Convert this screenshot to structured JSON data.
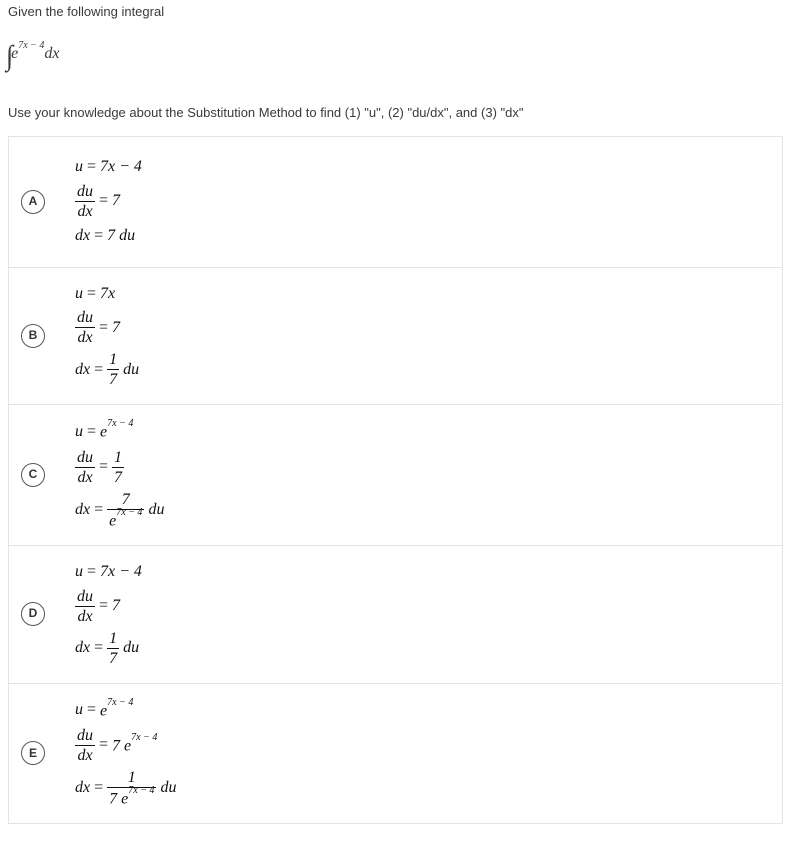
{
  "prompt": "Given the following integral",
  "integral_exponent": "7x − 4",
  "integral_dx": "dx",
  "instruction": "Use your knowledge about the Substitution Method to find (1) \"u\", (2) \"du/dx\", and (3) \"dx\"",
  "options": {
    "A": {
      "u": {
        "lhs": "u",
        "eq": "=",
        "rhs": "7x − 4"
      },
      "dudx": {
        "num": "du",
        "den": "dx",
        "eq": "=",
        "rhs": "7"
      },
      "dx": {
        "lhs": "dx",
        "eq": "=",
        "rhs": "7 du"
      }
    },
    "B": {
      "u": {
        "lhs": "u",
        "eq": "=",
        "rhs": "7x"
      },
      "dudx": {
        "num": "du",
        "den": "dx",
        "eq": "=",
        "rhs": "7"
      },
      "dx": {
        "lhs": "dx",
        "eq": "=",
        "frac_num": "1",
        "frac_den": "7",
        "trail": "du"
      }
    },
    "C": {
      "u": {
        "lhs": "u",
        "eq": "=",
        "rhs_e": "e",
        "rhs_exp": "7x − 4"
      },
      "dudx": {
        "num": "du",
        "den": "dx",
        "eq": "=",
        "frac_num": "1",
        "frac_den": "7"
      },
      "dx": {
        "lhs": "dx",
        "eq": "=",
        "frac_num": "7",
        "frac_den_e": "e",
        "frac_den_exp": "7x − 4",
        "trail": "du"
      }
    },
    "D": {
      "u": {
        "lhs": "u",
        "eq": "=",
        "rhs": "7x − 4"
      },
      "dudx": {
        "num": "du",
        "den": "dx",
        "eq": "=",
        "rhs": "7"
      },
      "dx": {
        "lhs": "dx",
        "eq": "=",
        "frac_num": "1",
        "frac_den": "7",
        "trail": "du"
      }
    },
    "E": {
      "u": {
        "lhs": "u",
        "eq": "=",
        "rhs_e": "e",
        "rhs_exp": "7x − 4"
      },
      "dudx": {
        "num": "du",
        "den": "dx",
        "eq": "=",
        "rhs_coef": "7 ",
        "rhs_e": "e",
        "rhs_exp": "7x − 4"
      },
      "dx": {
        "lhs": "dx",
        "eq": "=",
        "frac_num": "1",
        "frac_den_coef": "7 ",
        "frac_den_e": "e",
        "frac_den_exp": "7x − 4",
        "trail": "du"
      }
    }
  }
}
